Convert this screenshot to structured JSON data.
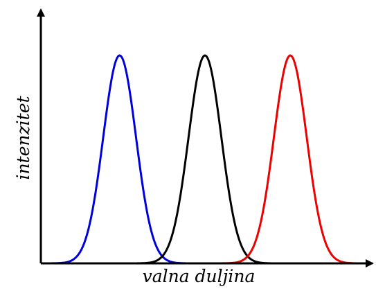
{
  "chart_data": {
    "type": "line",
    "title": "",
    "xlabel": "valna duljina",
    "ylabel": "intenzitet",
    "xlim": [
      0,
      100
    ],
    "ylim": [
      0,
      100
    ],
    "grid": false,
    "legend": "none",
    "x_ticks": [],
    "y_ticks": [],
    "series": [
      {
        "color": "#0000dd",
        "center": 24,
        "width": 5,
        "peak": 100,
        "range": [
          3,
          44
        ]
      },
      {
        "color": "#000000",
        "center": 50,
        "width": 5,
        "peak": 100,
        "range": [
          29,
          70
        ]
      },
      {
        "color": "#ee0000",
        "center": 76,
        "width": 5,
        "peak": 100,
        "range": [
          55,
          96
        ]
      }
    ]
  }
}
